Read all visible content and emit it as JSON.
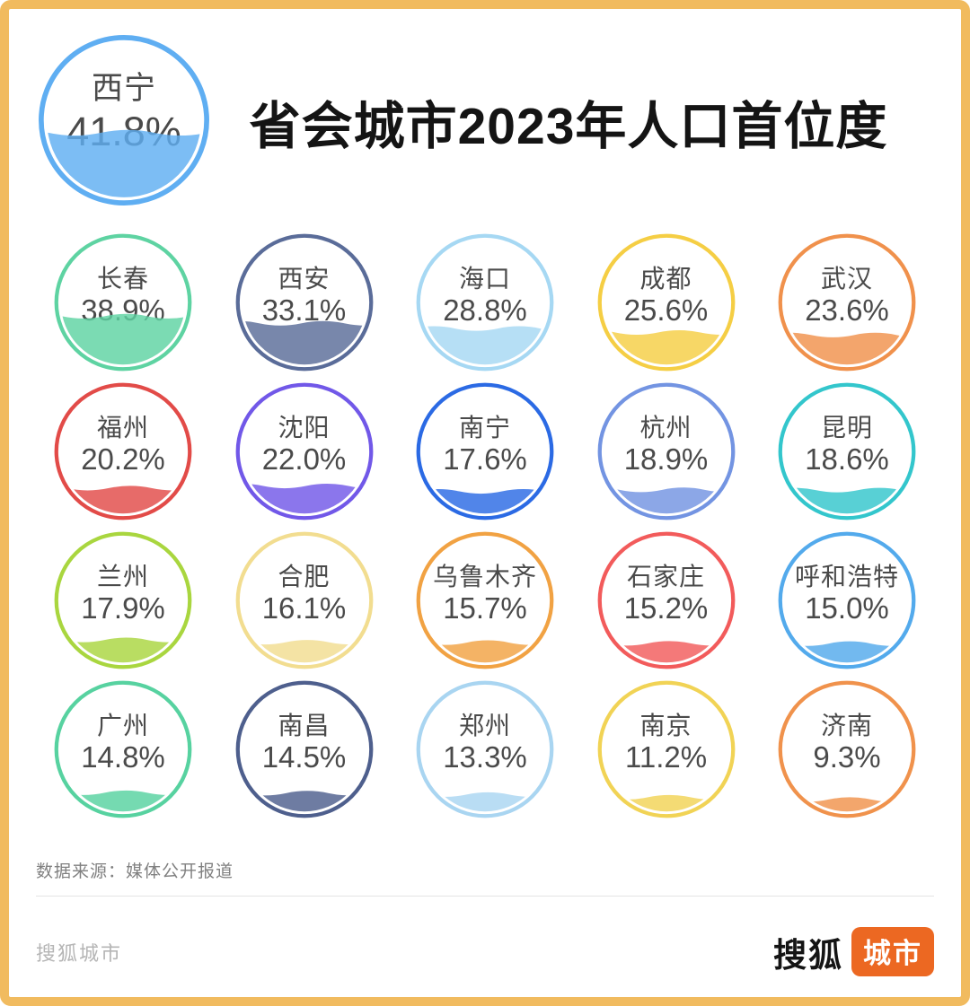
{
  "frame": {
    "border_color": "#F1BB5F",
    "background": "#FFFFFF"
  },
  "header": {
    "title": "省会城市2023年人口首位度",
    "featured": {
      "name": "西宁",
      "percent": "41.8%",
      "value": 41.8,
      "color": "#5FAEF2"
    }
  },
  "gauges": [
    {
      "name": "长春",
      "percent": "38.9%",
      "value": 38.9,
      "color": "#5ED3A2"
    },
    {
      "name": "西安",
      "percent": "33.1%",
      "value": 33.1,
      "color": "#5A6C99"
    },
    {
      "name": "海口",
      "percent": "28.8%",
      "value": 28.8,
      "color": "#A6D8F3"
    },
    {
      "name": "成都",
      "percent": "25.6%",
      "value": 25.6,
      "color": "#F5CE44"
    },
    {
      "name": "武汉",
      "percent": "23.6%",
      "value": 23.6,
      "color": "#F0914C"
    },
    {
      "name": "福州",
      "percent": "20.2%",
      "value": 20.2,
      "color": "#E24B48"
    },
    {
      "name": "沈阳",
      "percent": "22.0%",
      "value": 22.0,
      "color": "#7158E8"
    },
    {
      "name": "南宁",
      "percent": "17.6%",
      "value": 17.6,
      "color": "#2B6AE4"
    },
    {
      "name": "杭州",
      "percent": "18.9%",
      "value": 18.9,
      "color": "#7394E2"
    },
    {
      "name": "昆明",
      "percent": "18.6%",
      "value": 18.6,
      "color": "#33C6CC"
    },
    {
      "name": "兰州",
      "percent": "17.9%",
      "value": 17.9,
      "color": "#A9D63F"
    },
    {
      "name": "合肥",
      "percent": "16.1%",
      "value": 16.1,
      "color": "#F2DD90"
    },
    {
      "name": "乌鲁木齐",
      "percent": "15.7%",
      "value": 15.7,
      "color": "#F1A243"
    },
    {
      "name": "石家庄",
      "percent": "15.2%",
      "value": 15.2,
      "color": "#F25B5B"
    },
    {
      "name": "呼和浩特",
      "percent": "15.0%",
      "value": 15.0,
      "color": "#53AAEC"
    },
    {
      "name": "广州",
      "percent": "14.8%",
      "value": 14.8,
      "color": "#57D2A0"
    },
    {
      "name": "南昌",
      "percent": "14.5%",
      "value": 14.5,
      "color": "#4E5F8D"
    },
    {
      "name": "郑州",
      "percent": "13.3%",
      "value": 13.3,
      "color": "#A9D5F1"
    },
    {
      "name": "南京",
      "percent": "11.2%",
      "value": 11.2,
      "color": "#F1D355"
    },
    {
      "name": "济南",
      "percent": "9.3%",
      "value": 9.3,
      "color": "#F0924C"
    }
  ],
  "chart_data": {
    "type": "bar",
    "variant": "liquid-fill-circle-gauges",
    "title": "省会城市2023年人口首位度",
    "unit": "percent",
    "categories": [
      "西宁",
      "长春",
      "西安",
      "海口",
      "成都",
      "武汉",
      "福州",
      "沈阳",
      "南宁",
      "杭州",
      "昆明",
      "兰州",
      "合肥",
      "乌鲁木齐",
      "石家庄",
      "呼和浩特",
      "广州",
      "南昌",
      "郑州",
      "南京",
      "济南"
    ],
    "values": [
      41.8,
      38.9,
      33.1,
      28.8,
      25.6,
      23.6,
      20.2,
      22.0,
      17.6,
      18.9,
      18.6,
      17.9,
      16.1,
      15.7,
      15.2,
      15.0,
      14.8,
      14.5,
      13.3,
      11.2,
      9.3
    ],
    "ylim": [
      0,
      100
    ],
    "legend": "none",
    "source": "数据来源：媒体公开报道"
  },
  "source": {
    "label": "数据来源：媒体公开报道"
  },
  "footer": {
    "watermark": "搜狐城市",
    "logo_text": "搜狐",
    "logo_badge": "城市",
    "badge_color": "#EC6822"
  }
}
